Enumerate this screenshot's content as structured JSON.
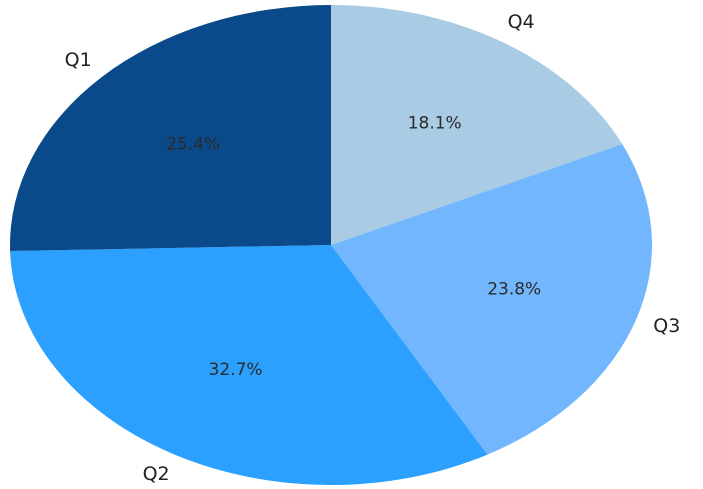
{
  "chart_data": {
    "type": "pie",
    "categories": [
      "Q4",
      "Q3",
      "Q2",
      "Q1"
    ],
    "values": [
      18.1,
      23.8,
      32.7,
      25.4
    ],
    "labels": [
      "18.1%",
      "23.8%",
      "32.7%",
      "25.4%"
    ],
    "colors": [
      "#a9cbe3",
      "#72b7fd",
      "#2ba0fe",
      "#0b4a8a"
    ],
    "start_angle": 90,
    "direction": "clockwise",
    "title": "",
    "legend": "none"
  }
}
